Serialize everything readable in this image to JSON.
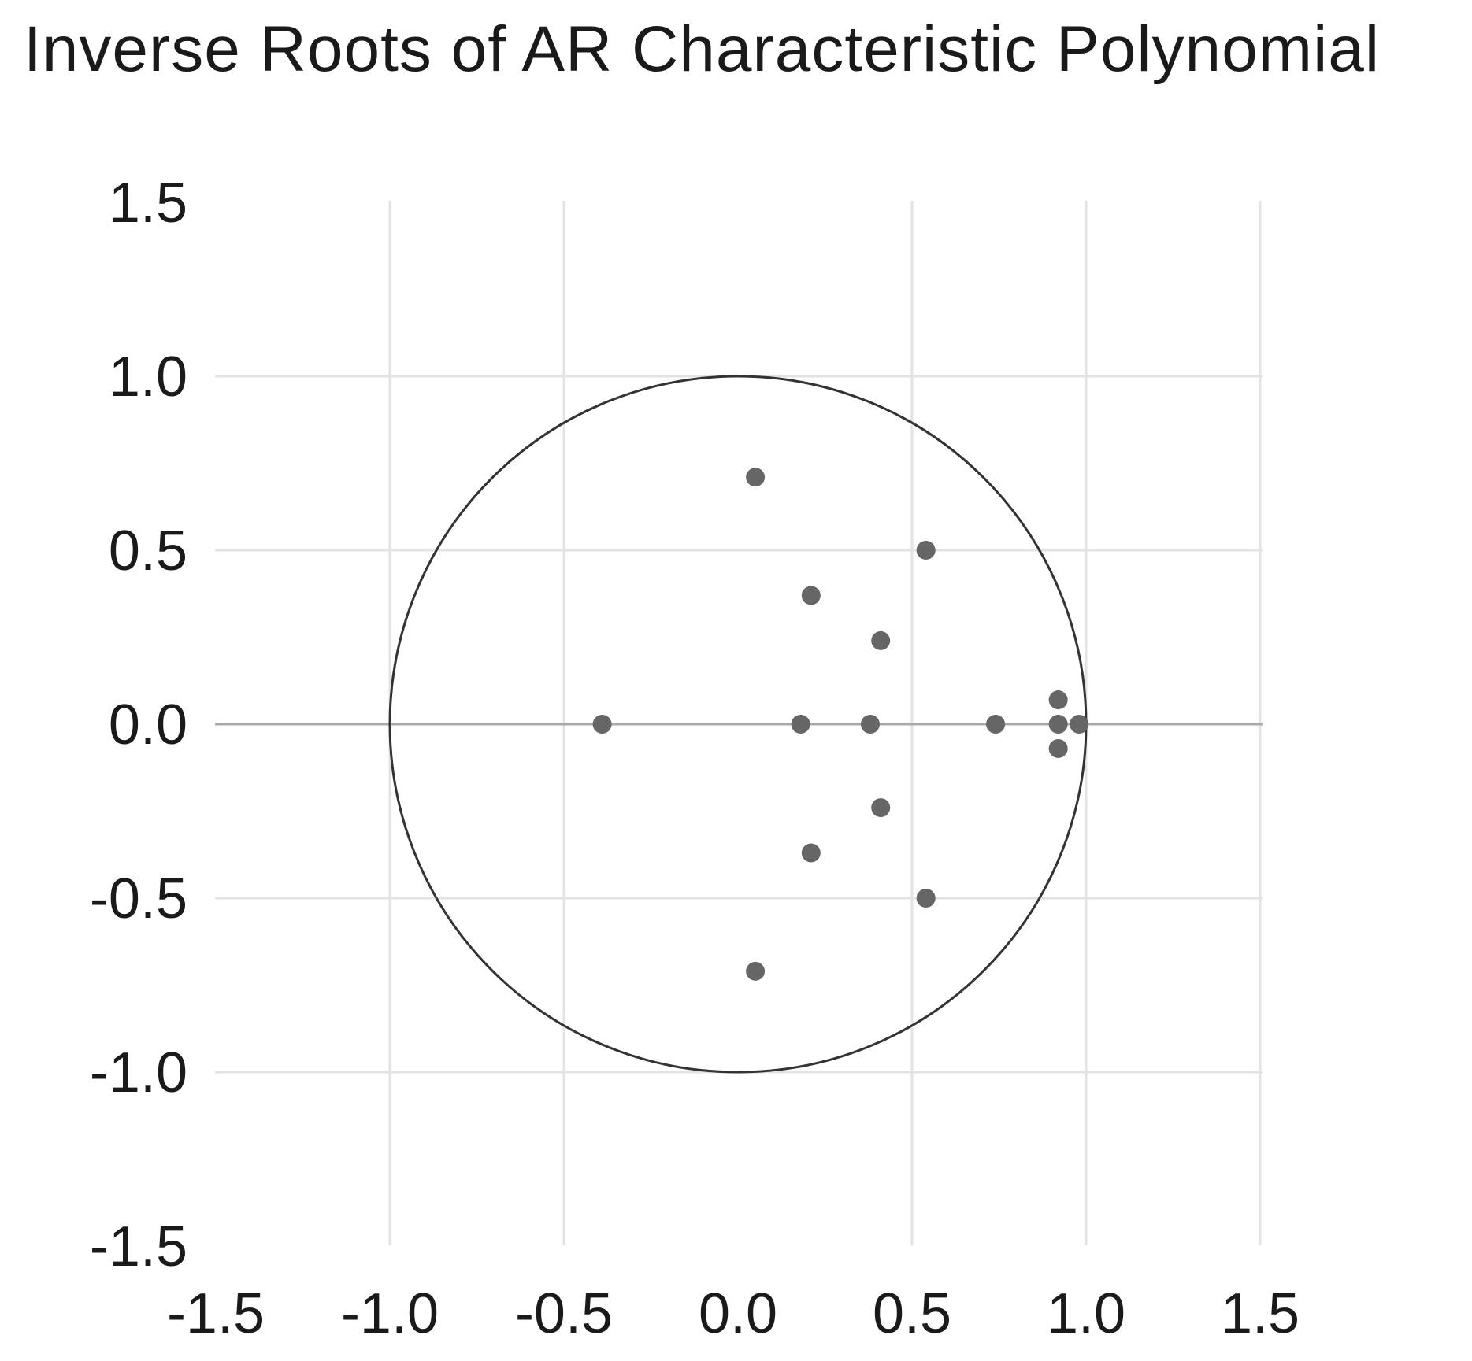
{
  "chart_data": {
    "type": "scatter",
    "title": "Inverse Roots of AR Characteristic Polynomial",
    "xlabel": "",
    "ylabel": "",
    "xlim": [
      -1.5,
      1.5
    ],
    "ylim": [
      -1.5,
      1.5
    ],
    "x_ticks": [
      -1.5,
      -1.0,
      -0.5,
      0.0,
      0.5,
      1.0,
      1.5
    ],
    "y_ticks": [
      -1.5,
      -1.0,
      -0.5,
      0.0,
      0.5,
      1.0,
      1.5
    ],
    "x_tick_labels": [
      "-1.5",
      "-1.0",
      "-0.5",
      "0.0",
      "0.5",
      "1.0",
      "1.5"
    ],
    "y_tick_labels": [
      "-1.5",
      "-1.0",
      "-0.5",
      "0.0",
      "0.5",
      "1.0",
      "1.5"
    ],
    "grid": true,
    "unit_circle": true,
    "point_color": "#666666",
    "circle_color": "#333333",
    "grid_color": "#e3e3e3",
    "zero_line_color": "#aaaaaa",
    "points": [
      {
        "x": 0.05,
        "y": 0.71
      },
      {
        "x": 0.05,
        "y": -0.71
      },
      {
        "x": 0.54,
        "y": 0.5
      },
      {
        "x": 0.54,
        "y": -0.5
      },
      {
        "x": 0.21,
        "y": 0.37
      },
      {
        "x": 0.21,
        "y": -0.37
      },
      {
        "x": 0.41,
        "y": 0.24
      },
      {
        "x": 0.41,
        "y": -0.24
      },
      {
        "x": 0.92,
        "y": 0.07
      },
      {
        "x": 0.92,
        "y": -0.07
      },
      {
        "x": -0.39,
        "y": 0.0
      },
      {
        "x": 0.18,
        "y": 0.0
      },
      {
        "x": 0.38,
        "y": 0.0
      },
      {
        "x": 0.74,
        "y": 0.0
      },
      {
        "x": 0.92,
        "y": 0.0
      },
      {
        "x": 0.98,
        "y": 0.0
      }
    ]
  }
}
